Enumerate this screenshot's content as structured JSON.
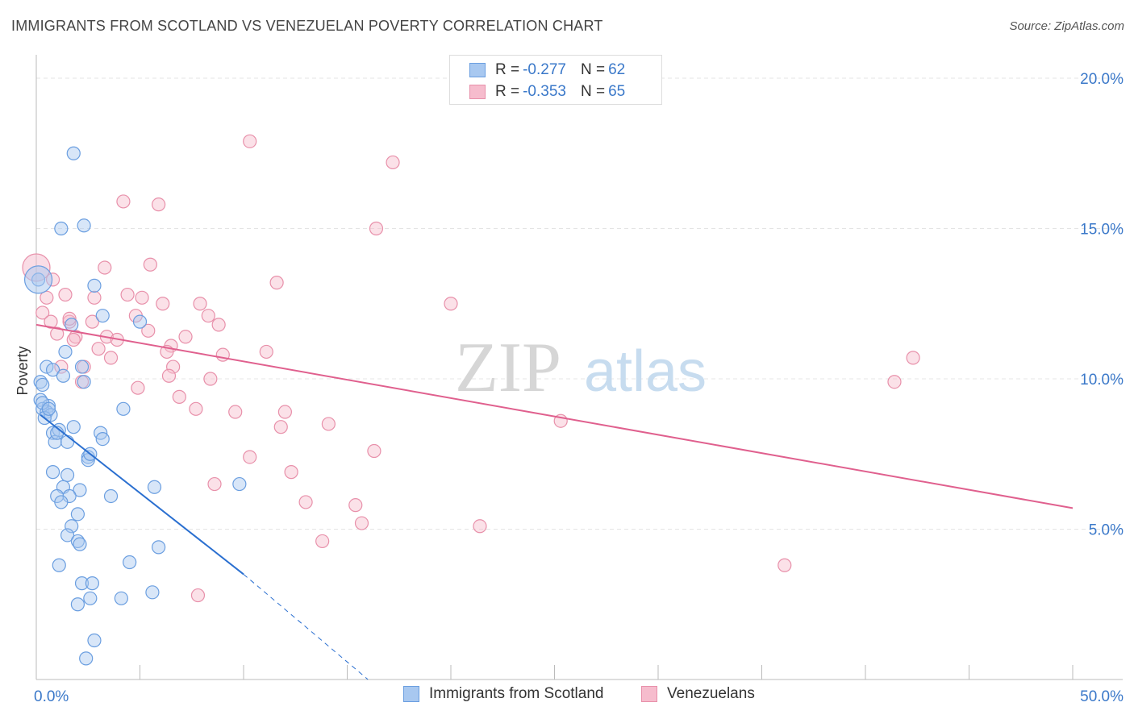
{
  "header": {
    "title": "IMMIGRANTS FROM SCOTLAND VS VENEZUELAN POVERTY CORRELATION CHART",
    "source": "Source: ZipAtlas.com"
  },
  "watermark": {
    "zip": "ZIP",
    "atlas": "atlas"
  },
  "colors": {
    "blue_fill": "#a8c8f0",
    "blue_stroke": "#6a9ee0",
    "blue_line": "#2a6fd0",
    "pink_fill": "#f6bccd",
    "pink_stroke": "#e890aa",
    "pink_line": "#e0608e",
    "tick_text": "#3a78c9",
    "grid": "#e4e4e4"
  },
  "stats_legend": {
    "r_label": "R =",
    "n_label": "N =",
    "rows": [
      {
        "r": "-0.277",
        "n": "62",
        "color": "blue"
      },
      {
        "r": "-0.353",
        "n": "65",
        "color": "pink"
      }
    ]
  },
  "chart_data": {
    "type": "scatter",
    "title": "IMMIGRANTS FROM SCOTLAND VS VENEZUELAN POVERTY CORRELATION CHART",
    "xlabel": "",
    "ylabel": "Poverty",
    "xlim": [
      0,
      50
    ],
    "ylim": [
      0,
      20
    ],
    "x_tick_labels": [
      "0.0%",
      "50.0%"
    ],
    "y_ticks": [
      5,
      10,
      15,
      20
    ],
    "y_tick_labels": [
      "5.0%",
      "10.0%",
      "15.0%",
      "20.0%"
    ],
    "grid": true,
    "legend_position": "bottom",
    "series": [
      {
        "name": "Immigrants from Scotland",
        "color": "blue",
        "trend": {
          "x": [
            0.2,
            10.0
          ],
          "y": [
            8.8,
            3.5
          ],
          "dashed_to": [
            16.0,
            0.0
          ]
        },
        "points": [
          [
            1.8,
            17.5
          ],
          [
            2.3,
            15.1
          ],
          [
            1.2,
            15.0
          ],
          [
            0.1,
            13.3
          ],
          [
            2.8,
            13.1
          ],
          [
            3.2,
            12.1
          ],
          [
            5.0,
            11.9
          ],
          [
            1.7,
            11.8
          ],
          [
            1.4,
            10.9
          ],
          [
            0.5,
            10.4
          ],
          [
            0.8,
            10.3
          ],
          [
            2.2,
            10.4
          ],
          [
            1.3,
            10.1
          ],
          [
            2.3,
            9.9
          ],
          [
            0.2,
            9.9
          ],
          [
            0.3,
            9.8
          ],
          [
            0.2,
            9.3
          ],
          [
            0.6,
            9.1
          ],
          [
            0.3,
            9.0
          ],
          [
            0.5,
            8.9
          ],
          [
            0.7,
            8.8
          ],
          [
            0.4,
            8.7
          ],
          [
            4.2,
            9.0
          ],
          [
            1.8,
            8.4
          ],
          [
            0.8,
            8.2
          ],
          [
            1.1,
            8.3
          ],
          [
            3.1,
            8.2
          ],
          [
            0.9,
            7.9
          ],
          [
            1.5,
            7.9
          ],
          [
            3.2,
            8.0
          ],
          [
            2.5,
            7.4
          ],
          [
            2.5,
            7.3
          ],
          [
            0.8,
            6.9
          ],
          [
            1.5,
            6.8
          ],
          [
            1.3,
            6.4
          ],
          [
            2.1,
            6.3
          ],
          [
            5.7,
            6.4
          ],
          [
            9.8,
            6.5
          ],
          [
            1.0,
            6.1
          ],
          [
            1.6,
            6.1
          ],
          [
            3.6,
            6.1
          ],
          [
            1.2,
            5.9
          ],
          [
            2.0,
            5.5
          ],
          [
            1.7,
            5.1
          ],
          [
            1.5,
            4.8
          ],
          [
            2.0,
            4.6
          ],
          [
            2.1,
            4.5
          ],
          [
            5.9,
            4.4
          ],
          [
            1.1,
            3.8
          ],
          [
            4.5,
            3.9
          ],
          [
            2.2,
            3.2
          ],
          [
            2.7,
            3.2
          ],
          [
            2.6,
            2.7
          ],
          [
            4.1,
            2.7
          ],
          [
            5.6,
            2.9
          ],
          [
            2.0,
            2.5
          ],
          [
            2.8,
            1.3
          ],
          [
            2.4,
            0.7
          ],
          [
            0.3,
            9.2
          ],
          [
            0.6,
            9.0
          ],
          [
            1.0,
            8.2
          ],
          [
            2.6,
            7.5
          ]
        ],
        "big_point": [
          0.1,
          13.3
        ]
      },
      {
        "name": "Venezuelans",
        "color": "pink",
        "trend": {
          "x": [
            0.0,
            50.0
          ],
          "y": [
            11.8,
            5.7
          ]
        },
        "points": [
          [
            10.3,
            17.9
          ],
          [
            17.2,
            17.2
          ],
          [
            4.2,
            15.9
          ],
          [
            5.9,
            15.8
          ],
          [
            16.4,
            15.0
          ],
          [
            3.3,
            13.7
          ],
          [
            5.5,
            13.8
          ],
          [
            11.6,
            13.2
          ],
          [
            0.8,
            13.3
          ],
          [
            1.4,
            12.8
          ],
          [
            0.5,
            12.7
          ],
          [
            4.4,
            12.8
          ],
          [
            2.8,
            12.7
          ],
          [
            5.1,
            12.7
          ],
          [
            6.1,
            12.5
          ],
          [
            7.9,
            12.5
          ],
          [
            20.0,
            12.5
          ],
          [
            0.3,
            12.2
          ],
          [
            4.8,
            12.1
          ],
          [
            8.3,
            12.1
          ],
          [
            1.6,
            11.9
          ],
          [
            2.7,
            11.9
          ],
          [
            8.8,
            11.8
          ],
          [
            5.4,
            11.6
          ],
          [
            1.0,
            11.5
          ],
          [
            1.9,
            11.4
          ],
          [
            3.4,
            11.4
          ],
          [
            1.8,
            11.3
          ],
          [
            7.2,
            11.4
          ],
          [
            3.9,
            11.3
          ],
          [
            6.5,
            11.1
          ],
          [
            3.0,
            11.0
          ],
          [
            6.3,
            10.9
          ],
          [
            9.0,
            10.8
          ],
          [
            11.1,
            10.9
          ],
          [
            3.6,
            10.7
          ],
          [
            42.3,
            10.7
          ],
          [
            1.2,
            10.4
          ],
          [
            2.3,
            10.4
          ],
          [
            6.6,
            10.4
          ],
          [
            6.4,
            10.1
          ],
          [
            8.4,
            10.0
          ],
          [
            2.2,
            9.9
          ],
          [
            41.4,
            9.9
          ],
          [
            4.9,
            9.7
          ],
          [
            6.9,
            9.4
          ],
          [
            7.7,
            9.0
          ],
          [
            9.6,
            8.9
          ],
          [
            12.0,
            8.9
          ],
          [
            14.1,
            8.5
          ],
          [
            25.3,
            8.6
          ],
          [
            11.8,
            8.4
          ],
          [
            16.3,
            7.6
          ],
          [
            10.3,
            7.4
          ],
          [
            12.3,
            6.9
          ],
          [
            8.6,
            6.5
          ],
          [
            13.0,
            5.9
          ],
          [
            15.4,
            5.8
          ],
          [
            15.7,
            5.2
          ],
          [
            21.4,
            5.1
          ],
          [
            13.8,
            4.6
          ],
          [
            36.1,
            3.8
          ],
          [
            7.8,
            2.8
          ],
          [
            1.6,
            12.0
          ],
          [
            0.7,
            11.9
          ]
        ],
        "big_point": [
          0.0,
          13.7
        ]
      }
    ]
  }
}
